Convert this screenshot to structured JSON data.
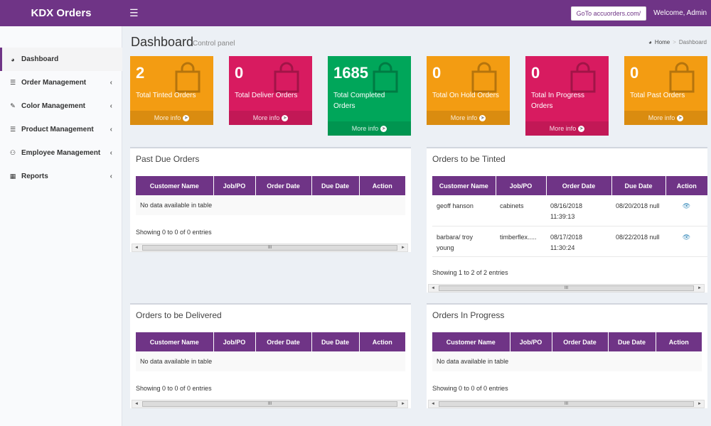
{
  "header": {
    "brand": "KDX Orders",
    "menu_icon": "hamburger-icon",
    "goto_label": "GoTo accuorders.com/",
    "welcome": "Welcome, Admin",
    "color": "#6f3486"
  },
  "sidebar": {
    "items": [
      {
        "label": "Dashboard",
        "icon": "dashboard-icon",
        "active": true
      },
      {
        "label": "Order Management",
        "icon": "list-icon",
        "caret": "‹"
      },
      {
        "label": "Color Management",
        "icon": "paint-brush-icon",
        "caret": "‹"
      },
      {
        "label": "Product Management",
        "icon": "list-icon",
        "caret": "‹"
      },
      {
        "label": "Employee Management",
        "icon": "users-icon",
        "caret": "‹"
      },
      {
        "label": "Reports",
        "icon": "book-icon",
        "caret": "‹"
      }
    ]
  },
  "page": {
    "title": "Dashboard",
    "subtitle": "Control panel",
    "breadcrumb_home": "Home",
    "breadcrumb_current": "Dashboard",
    "breadcrumb_sep": ">"
  },
  "stats": [
    {
      "value": "2",
      "label": "Total Tinted Orders",
      "more": "More info",
      "color": "#f39c12"
    },
    {
      "value": "0",
      "label": "Total Deliver Orders",
      "more": "More info",
      "color": "#d81b60"
    },
    {
      "value": "1685",
      "label": "Total Completed Orders",
      "more": "More info",
      "color": "#00a65a"
    },
    {
      "value": "0",
      "label": "Total On Hold Orders",
      "more": "More info",
      "color": "#f39c12"
    },
    {
      "value": "0",
      "label": "Total In Progress Orders",
      "more": "More info",
      "color": "#d81b60"
    },
    {
      "value": "0",
      "label": "Total Past Orders",
      "more": "More info",
      "color": "#f39c12"
    }
  ],
  "columns": [
    "Customer Name",
    "Job/PO",
    "Order Date",
    "Due Date",
    "Action"
  ],
  "empty_text": "No data available in table",
  "panels": {
    "past_due": {
      "title": "Past Due Orders",
      "footer": "Showing 0 to 0 of 0 entries"
    },
    "to_be_tinted": {
      "title": "Orders to be Tinted",
      "footer": "Showing 1 to 2 of 2 entries",
      "rows": [
        {
          "customer": "geoff hanson",
          "job": "cabinets",
          "order_date": "08/16/2018 11:39:13",
          "due_date": "08/20/2018 null",
          "action_icon": "eye-icon"
        },
        {
          "customer": "barbara/ troy young",
          "job": "timberflex.....",
          "order_date": "08/17/2018 11:30:24",
          "due_date": "08/22/2018 null",
          "action_icon": "eye-icon"
        }
      ]
    },
    "to_be_delivered": {
      "title": "Orders to be Delivered",
      "footer": "Showing 0 to 0 of 0 entries"
    },
    "in_progress": {
      "title": "Orders In Progress",
      "footer": "Showing 0 to 0 of 0 entries"
    }
  },
  "scrollbar": {
    "left": "◄",
    "right": "►",
    "grip": "III"
  }
}
